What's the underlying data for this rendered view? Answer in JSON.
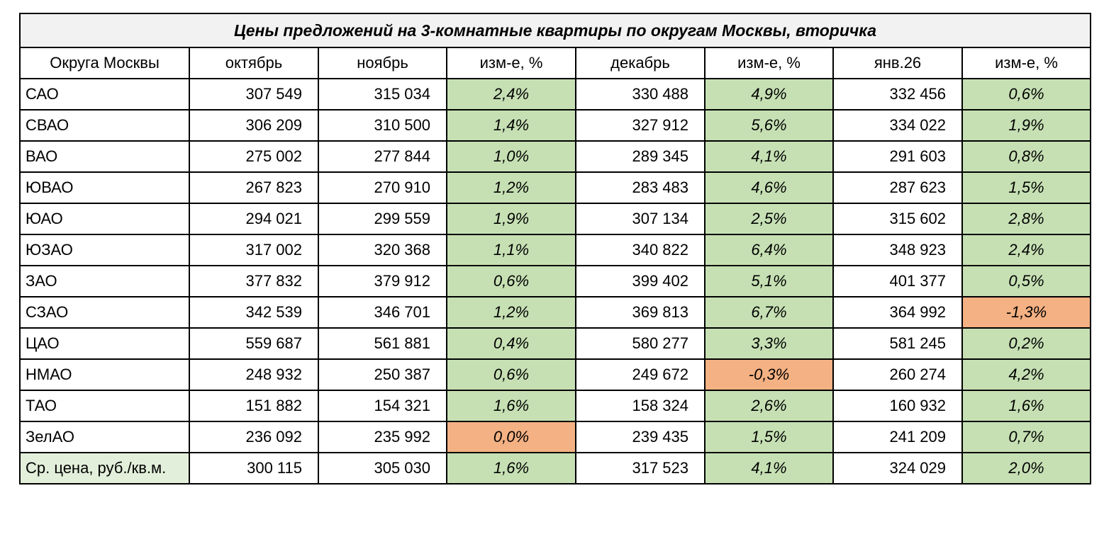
{
  "chart_data": {
    "type": "table",
    "title": "Цены предложений на 3-комнатные квартиры по округам Москвы, вторичка",
    "columns": [
      "Округа Москвы",
      "октябрь",
      "ноябрь",
      "изм-е, %",
      "декабрь",
      "изм-е, %",
      "янв.26",
      "изм-е, %"
    ],
    "rows": [
      {
        "district": "САО",
        "oct": "307 549",
        "nov": "315 034",
        "chg_nov": "2,4%",
        "dec": "330 488",
        "chg_dec": "4,9%",
        "jan": "332 456",
        "chg_jan": "0,6%"
      },
      {
        "district": "СВАО",
        "oct": "306 209",
        "nov": "310 500",
        "chg_nov": "1,4%",
        "dec": "327 912",
        "chg_dec": "5,6%",
        "jan": "334 022",
        "chg_jan": "1,9%"
      },
      {
        "district": "ВАО",
        "oct": "275 002",
        "nov": "277 844",
        "chg_nov": "1,0%",
        "dec": "289 345",
        "chg_dec": "4,1%",
        "jan": "291 603",
        "chg_jan": "0,8%"
      },
      {
        "district": "ЮВАО",
        "oct": "267 823",
        "nov": "270 910",
        "chg_nov": "1,2%",
        "dec": "283 483",
        "chg_dec": "4,6%",
        "jan": "287 623",
        "chg_jan": "1,5%"
      },
      {
        "district": "ЮАО",
        "oct": "294 021",
        "nov": "299 559",
        "chg_nov": "1,9%",
        "dec": "307 134",
        "chg_dec": "2,5%",
        "jan": "315 602",
        "chg_jan": "2,8%"
      },
      {
        "district": "ЮЗАО",
        "oct": "317 002",
        "nov": "320 368",
        "chg_nov": "1,1%",
        "dec": "340 822",
        "chg_dec": "6,4%",
        "jan": "348 923",
        "chg_jan": "2,4%"
      },
      {
        "district": "ЗАО",
        "oct": "377 832",
        "nov": "379 912",
        "chg_nov": "0,6%",
        "dec": "399 402",
        "chg_dec": "5,1%",
        "jan": "401 377",
        "chg_jan": "0,5%"
      },
      {
        "district": "СЗАО",
        "oct": "342 539",
        "nov": "346 701",
        "chg_nov": "1,2%",
        "dec": "369 813",
        "chg_dec": "6,7%",
        "jan": "364 992",
        "chg_jan": "-1,3%"
      },
      {
        "district": "ЦАО",
        "oct": "559 687",
        "nov": "561 881",
        "chg_nov": "0,4%",
        "dec": "580 277",
        "chg_dec": "3,3%",
        "jan": "581 245",
        "chg_jan": "0,2%"
      },
      {
        "district": "НМАО",
        "oct": "248 932",
        "nov": "250 387",
        "chg_nov": "0,6%",
        "dec": "249 672",
        "chg_dec": "-0,3%",
        "jan": "260 274",
        "chg_jan": "4,2%"
      },
      {
        "district": "ТАО",
        "oct": "151 882",
        "nov": "154 321",
        "chg_nov": "1,6%",
        "dec": "158 324",
        "chg_dec": "2,6%",
        "jan": "160 932",
        "chg_jan": "1,6%"
      },
      {
        "district": "ЗелАО",
        "oct": "236 092",
        "nov": "235 992",
        "chg_nov": "0,0%",
        "dec": "239 435",
        "chg_dec": "1,5%",
        "jan": "241 209",
        "chg_jan": "0,7%"
      }
    ],
    "average": {
      "district": "Ср. цена, руб./кв.м.",
      "oct": "300 115",
      "nov": "305 030",
      "chg_nov": "1,6%",
      "dec": "317 523",
      "chg_dec": "4,1%",
      "jan": "324 029",
      "chg_jan": "2,0%"
    }
  },
  "colors": {
    "positive_fill": "#c6e0b4",
    "negative_fill": "#f4b183",
    "average_label_fill": "#e2efda",
    "title_fill": "#f2f2f2"
  }
}
